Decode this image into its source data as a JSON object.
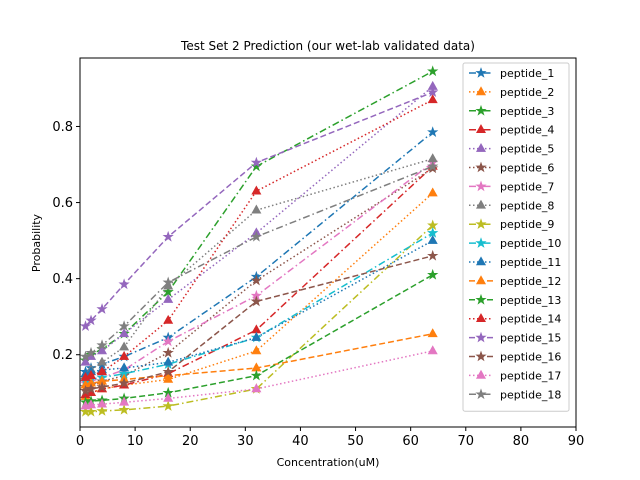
{
  "chart_data": {
    "type": "line",
    "title": "Test Set 2  Prediction  (our wet-lab validated data)",
    "xlabel": "Concentration(uM)",
    "ylabel": "Probability",
    "xlim": [
      0,
      90
    ],
    "ylim": [
      0.01,
      0.98
    ],
    "xticks": [
      0,
      10,
      20,
      30,
      40,
      50,
      60,
      70,
      80,
      90
    ],
    "yticks": [
      0.2,
      0.4,
      0.6,
      0.8
    ],
    "ytick_labels": [
      "0.2",
      "0.4",
      "0.6",
      "0.8"
    ],
    "grid": false,
    "legend_position": "upper-right",
    "x": [
      1,
      2,
      4,
      8,
      16,
      32,
      64
    ],
    "series": [
      {
        "name": "peptide_1",
        "color": "#1f77b4",
        "dash": "7,3,1.5,3",
        "marker": "star",
        "values": [
          0.155,
          0.165,
          0.175,
          0.195,
          0.245,
          0.405,
          0.785
        ]
      },
      {
        "name": "peptide_2",
        "color": "#ff7f0e",
        "dash": "1.5,2.5",
        "marker": "triangle",
        "values": [
          0.09,
          0.1,
          0.11,
          0.12,
          0.135,
          0.21,
          0.625
        ]
      },
      {
        "name": "peptide_3",
        "color": "#2ca02c",
        "dash": "7,3,1.5,3",
        "marker": "star",
        "values": [
          0.185,
          0.2,
          0.215,
          0.255,
          0.365,
          0.695,
          0.945
        ]
      },
      {
        "name": "peptide_4",
        "color": "#d62728",
        "dash": "7,3,1.5,3",
        "marker": "triangle",
        "values": [
          0.095,
          0.1,
          0.11,
          0.12,
          0.15,
          0.265,
          0.695
        ]
      },
      {
        "name": "peptide_5",
        "color": "#9467bd",
        "dash": "1.5,2.5",
        "marker": "triangle",
        "values": [
          0.18,
          0.195,
          0.21,
          0.255,
          0.345,
          0.52,
          0.905
        ]
      },
      {
        "name": "peptide_6",
        "color": "#8c564b",
        "dash": "1.5,2.5",
        "marker": "star",
        "values": [
          0.115,
          0.12,
          0.13,
          0.145,
          0.205,
          0.395,
          0.69
        ]
      },
      {
        "name": "peptide_7",
        "color": "#e377c2",
        "dash": "7,3,1.5,3",
        "marker": "star",
        "values": [
          0.125,
          0.13,
          0.14,
          0.16,
          0.235,
          0.355,
          0.705
        ]
      },
      {
        "name": "peptide_8",
        "color": "#7f7f7f",
        "dash": "1.5,2.5",
        "marker": "triangle",
        "values": [
          0.145,
          0.16,
          0.18,
          0.22,
          0.38,
          0.58,
          0.715
        ]
      },
      {
        "name": "peptide_9",
        "color": "#bcbd22",
        "dash": "7,3,1.5,3",
        "marker": "star",
        "values": [
          0.05,
          0.05,
          0.052,
          0.055,
          0.065,
          0.11,
          0.54
        ]
      },
      {
        "name": "peptide_10",
        "color": "#17becf",
        "dash": "7,3,1.5,3",
        "marker": "star",
        "values": [
          0.13,
          0.135,
          0.14,
          0.15,
          0.175,
          0.245,
          0.52
        ]
      },
      {
        "name": "peptide_11",
        "color": "#1f77b4",
        "dash": "1.5,2.5",
        "marker": "triangle",
        "values": [
          0.15,
          0.155,
          0.16,
          0.165,
          0.18,
          0.245,
          0.5
        ]
      },
      {
        "name": "peptide_12",
        "color": "#ff7f0e",
        "dash": "6,3",
        "marker": "triangle",
        "values": [
          0.12,
          0.125,
          0.13,
          0.135,
          0.145,
          0.165,
          0.255
        ]
      },
      {
        "name": "peptide_13",
        "color": "#2ca02c",
        "dash": "6,3",
        "marker": "star",
        "values": [
          0.075,
          0.078,
          0.08,
          0.085,
          0.1,
          0.145,
          0.41
        ]
      },
      {
        "name": "peptide_14",
        "color": "#d62728",
        "dash": "1.5,2.5",
        "marker": "triangle",
        "values": [
          0.14,
          0.145,
          0.155,
          0.195,
          0.29,
          0.63,
          0.87
        ]
      },
      {
        "name": "peptide_15",
        "color": "#9467bd",
        "dash": "6,3",
        "marker": "star",
        "values": [
          0.275,
          0.29,
          0.32,
          0.385,
          0.51,
          0.705,
          0.89
        ]
      },
      {
        "name": "peptide_16",
        "color": "#8c564b",
        "dash": "6,3",
        "marker": "star",
        "values": [
          0.105,
          0.11,
          0.115,
          0.125,
          0.155,
          0.34,
          0.46
        ]
      },
      {
        "name": "peptide_17",
        "color": "#e377c2",
        "dash": "1.5,2.5",
        "marker": "triangle",
        "values": [
          0.065,
          0.068,
          0.07,
          0.075,
          0.085,
          0.11,
          0.21
        ]
      },
      {
        "name": "peptide_18",
        "color": "#7f7f7f",
        "dash": "7,3,1.5,3",
        "marker": "star",
        "values": [
          0.195,
          0.205,
          0.225,
          0.275,
          0.39,
          0.51,
          0.695
        ]
      }
    ]
  }
}
